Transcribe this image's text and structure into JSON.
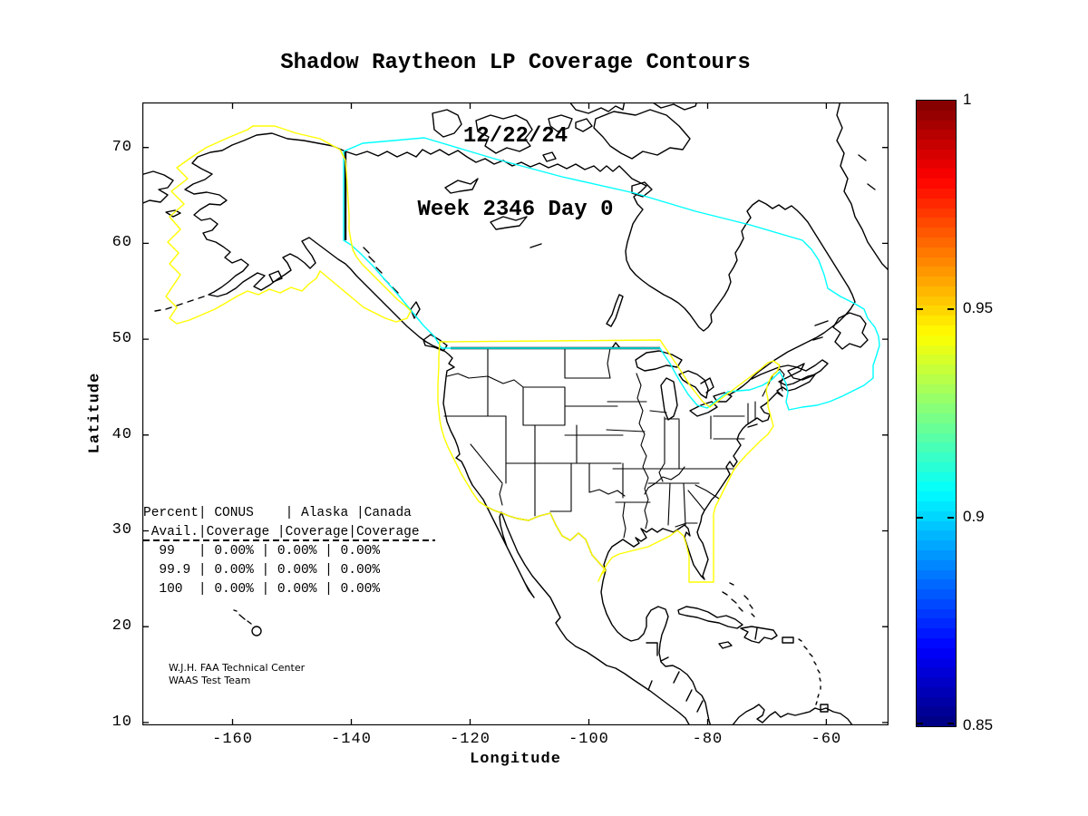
{
  "title": {
    "line1": "Shadow Raytheon LP Coverage Contours",
    "line2": "12/22/24",
    "line3": "Week 2346 Day 0"
  },
  "axes": {
    "xlabel": "Longitude",
    "ylabel": "Latitude",
    "x_ticks": [
      {
        "label": "-160",
        "value": -160
      },
      {
        "label": "-140",
        "value": -140
      },
      {
        "label": "-120",
        "value": -120
      },
      {
        "label": "-100",
        "value": -100
      },
      {
        "label": "-80",
        "value": -80
      },
      {
        "label": "-60",
        "value": -60
      }
    ],
    "y_ticks": [
      {
        "label": "70",
        "value": 70
      },
      {
        "label": "60",
        "value": 60
      },
      {
        "label": "50",
        "value": 50
      },
      {
        "label": "40",
        "value": 40
      },
      {
        "label": "30",
        "value": 30
      },
      {
        "label": "20",
        "value": 20
      },
      {
        "label": "10",
        "value": 10
      }
    ]
  },
  "colorbar": {
    "min": 0.85,
    "max": 1,
    "colormap": "jet",
    "labels": [
      {
        "label": "1",
        "value": 1
      },
      {
        "label": "0.95",
        "value": 0.95
      },
      {
        "label": "0.9",
        "value": 0.9
      },
      {
        "label": "0.85",
        "value": 0.85
      }
    ],
    "tick_marks": [
      0.95,
      0.9,
      0.85
    ]
  },
  "stats_table": {
    "lines": [
      "Percent| CONUS    | Alaska |Canada",
      " Avail.|Coverage |Coverage|Coverage",
      "  99   | 0.00% | 0.00% | 0.00%",
      "  99.9 | 0.00% | 0.00% | 0.00%",
      "  100  | 0.00% | 0.00% | 0.00%"
    ]
  },
  "credit": {
    "line1": "W.J.H. FAA Technical Center",
    "line2": "WAAS Test Team"
  },
  "chart_data": {
    "type": "map-contour",
    "title": "Shadow Raytheon LP Coverage Contours",
    "date": "12/22/24",
    "gps_week": "Week 2346 Day 0",
    "xlabel": "Longitude",
    "ylabel": "Latitude",
    "xlim": [
      -175,
      -49.5
    ],
    "ylim": [
      10,
      74.7
    ],
    "x_ticks": [
      -160,
      -140,
      -120,
      -100,
      -80,
      -60
    ],
    "y_ticks": [
      70,
      60,
      50,
      40,
      30,
      20,
      10
    ],
    "grid": false,
    "colorbar": {
      "min": 0.85,
      "max": 1,
      "ticks": [
        1,
        0.95,
        0.9,
        0.85
      ],
      "colormap": "jet",
      "position": "right"
    },
    "contour_colors": {
      "yellow": "#ffff00",
      "cyan": "#00ffff"
    },
    "contours": [
      {
        "name": "alaska-coverage-region",
        "color": "#ffff00"
      },
      {
        "name": "conus-coverage-region",
        "color": "#ffff00"
      },
      {
        "name": "canada-coverage-region",
        "color": "#00ffff"
      }
    ],
    "availability_table": {
      "columns": [
        "Percent Avail.",
        "CONUS Coverage",
        "Alaska Coverage",
        "Canada Coverage"
      ],
      "rows": [
        [
          "99",
          "0.00%",
          "0.00%",
          "0.00%"
        ],
        [
          "99.9",
          "0.00%",
          "0.00%",
          "0.00%"
        ],
        [
          "100",
          "0.00%",
          "0.00%",
          "0.00%"
        ]
      ]
    },
    "annotations": [
      "W.J.H. FAA Technical Center",
      "WAAS Test Team"
    ]
  }
}
